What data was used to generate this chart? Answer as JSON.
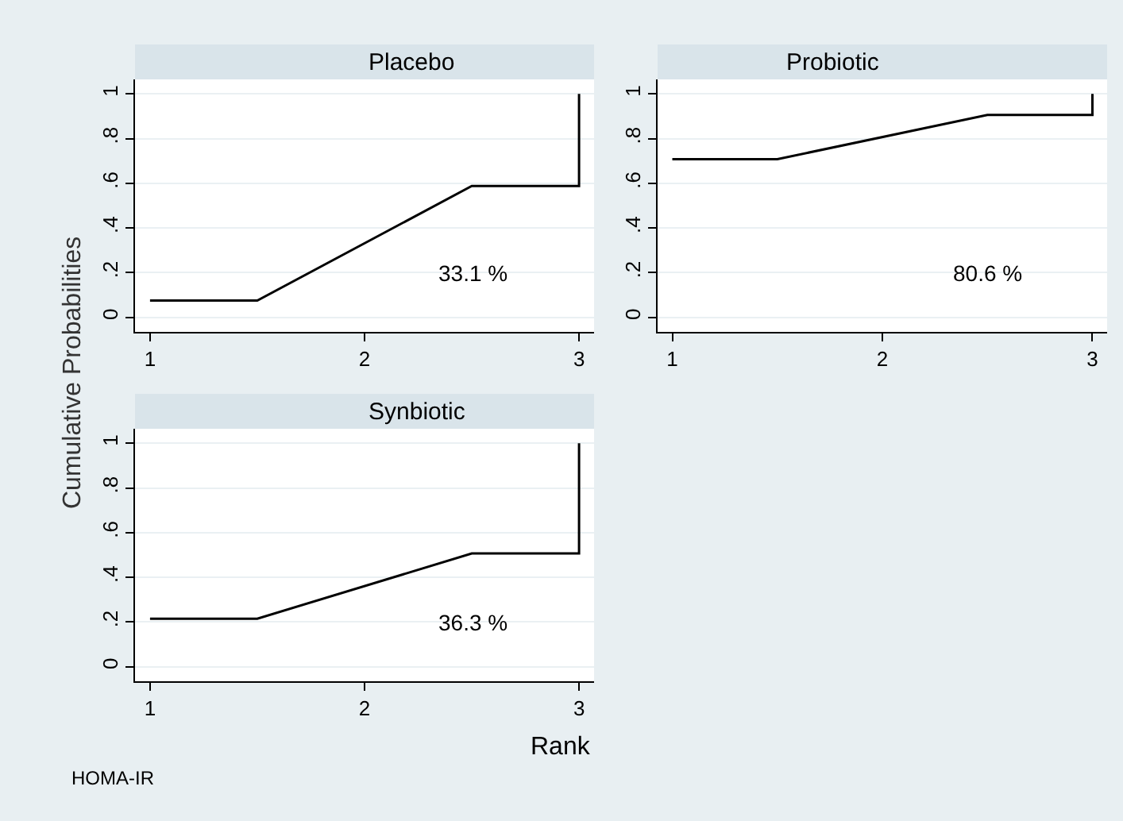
{
  "chart_data": [
    {
      "type": "line",
      "title": "Placebo",
      "ylabel": "Cumulative Probabilities",
      "x": [
        1,
        1.5,
        2.5,
        3,
        3
      ],
      "values": [
        0.075,
        0.075,
        0.588,
        0.588,
        1
      ],
      "color": "#000000",
      "xlim": [
        0.93,
        3.07
      ],
      "ylim": [
        -0.065,
        1.065
      ],
      "xticks": [
        1,
        2,
        3
      ],
      "yticks": [
        0,
        {
          "value": 0.2,
          "label": ".2"
        },
        {
          "value": 0.4,
          "label": ".4"
        },
        {
          "value": 0.6,
          "label": ".6"
        },
        {
          "value": 0.8,
          "label": ".8"
        },
        1
      ],
      "grid": "y",
      "annotations": [
        "33.1 %"
      ]
    },
    {
      "type": "line",
      "title": "Probiotic",
      "x": [
        1,
        1.5,
        2.5,
        3,
        3
      ],
      "values": [
        0.708,
        0.708,
        0.906,
        0.906,
        1
      ],
      "color": "#000000",
      "xlim": [
        0.93,
        3.07
      ],
      "ylim": [
        -0.065,
        1.065
      ],
      "xticks": [
        1,
        2,
        3
      ],
      "yticks": [
        0,
        {
          "value": 0.2,
          "label": ".2"
        },
        {
          "value": 0.4,
          "label": ".4"
        },
        {
          "value": 0.6,
          "label": ".6"
        },
        {
          "value": 0.8,
          "label": ".8"
        },
        1
      ],
      "grid": "y",
      "annotations": [
        "80.6 %"
      ]
    },
    {
      "type": "line",
      "title": "Synbiotic",
      "xlabel": "Rank",
      "x": [
        1,
        1.5,
        2.5,
        3,
        3
      ],
      "values": [
        0.215,
        0.215,
        0.507,
        0.507,
        1
      ],
      "color": "#000000",
      "xlim": [
        0.93,
        3.07
      ],
      "ylim": [
        -0.065,
        1.065
      ],
      "xticks": [
        1,
        2,
        3
      ],
      "yticks": [
        0,
        {
          "value": 0.2,
          "label": ".2"
        },
        {
          "value": 0.4,
          "label": ".4"
        },
        {
          "value": 0.6,
          "label": ".6"
        },
        {
          "value": 0.8,
          "label": ".8"
        },
        1
      ],
      "grid": "y",
      "annotations": [
        "36.3 %",
        "HOMA-IR"
      ]
    }
  ]
}
